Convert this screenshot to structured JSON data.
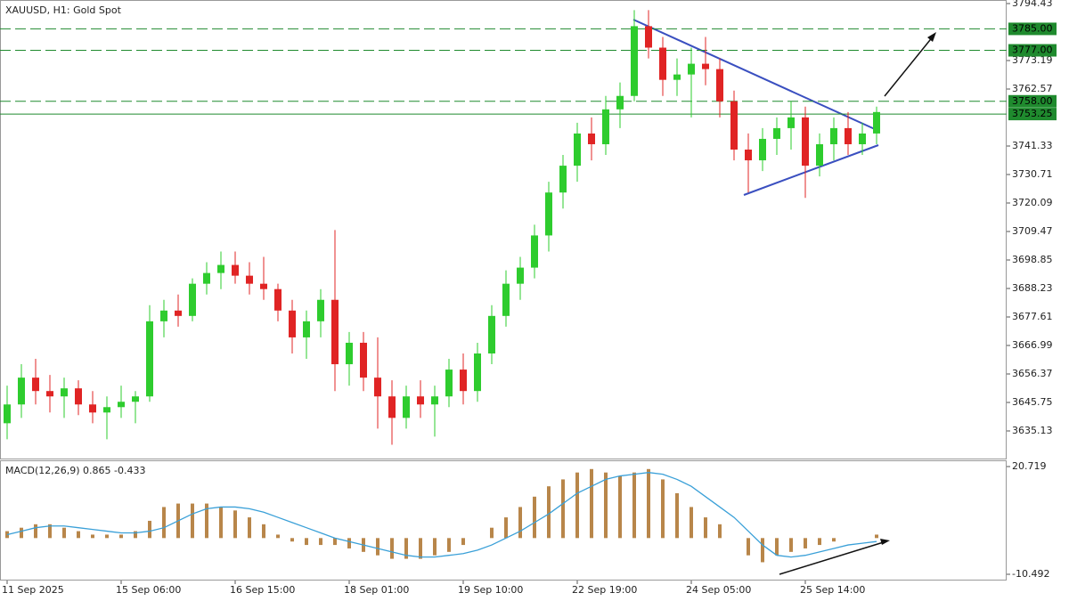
{
  "chart_data": [
    {
      "type": "candlestick",
      "title": "XAUUSD, H1:  Gold Spot",
      "categories": [
        "11 Sep 2025",
        null,
        null,
        null,
        null,
        null,
        null,
        null,
        "15 Sep 06:00",
        null,
        null,
        null,
        null,
        null,
        null,
        null,
        "16 Sep 15:00",
        null,
        null,
        null,
        null,
        null,
        null,
        null,
        "18 Sep 01:00",
        null,
        null,
        null,
        null,
        null,
        null,
        null,
        "19 Sep 10:00",
        null,
        null,
        null,
        null,
        null,
        null,
        null,
        "22 Sep 19:00",
        null,
        null,
        null,
        null,
        null,
        null,
        null,
        "24 Sep 05:00",
        null,
        null,
        null,
        null,
        null,
        null,
        null,
        "25 Sep 14:00",
        null,
        null,
        null,
        null,
        null
      ],
      "open": [
        3638,
        3645,
        3655,
        3650,
        3648,
        3651,
        3645,
        3642,
        3644,
        3646,
        3648,
        3676,
        3680,
        3678,
        3690,
        3694,
        3697,
        3693,
        3690,
        3688,
        3680,
        3670,
        3676,
        3684,
        3660,
        3668,
        3655,
        3648,
        3640,
        3648,
        3645,
        3648,
        3658,
        3650,
        3664,
        3678,
        3690,
        3696,
        3708,
        3724,
        3734,
        3746,
        3742,
        3755,
        3760,
        3786,
        3778,
        3766,
        3768,
        3772,
        3770,
        3758,
        3740,
        3736,
        3744,
        3748,
        3752,
        3734,
        3742,
        3748,
        3742,
        3746
      ],
      "high": [
        3652,
        3660,
        3662,
        3656,
        3655,
        3654,
        3650,
        3648,
        3652,
        3650,
        3682,
        3684,
        3686,
        3692,
        3698,
        3702,
        3702,
        3698,
        3700,
        3690,
        3684,
        3680,
        3688,
        3710,
        3672,
        3672,
        3670,
        3654,
        3652,
        3654,
        3652,
        3662,
        3664,
        3668,
        3682,
        3695,
        3700,
        3712,
        3728,
        3738,
        3750,
        3752,
        3760,
        3765,
        3792,
        3792,
        3782,
        3774,
        3778,
        3782,
        3774,
        3762,
        3746,
        3748,
        3752,
        3758,
        3756,
        3746,
        3752,
        3754,
        3750,
        3756
      ],
      "low": [
        3632,
        3640,
        3645,
        3642,
        3640,
        3641,
        3638,
        3632,
        3640,
        3638,
        3646,
        3670,
        3674,
        3676,
        3686,
        3688,
        3690,
        3686,
        3684,
        3676,
        3664,
        3662,
        3670,
        3650,
        3652,
        3650,
        3636,
        3630,
        3636,
        3640,
        3633,
        3644,
        3645,
        3646,
        3660,
        3674,
        3684,
        3692,
        3702,
        3718,
        3728,
        3736,
        3738,
        3748,
        3758,
        3774,
        3760,
        3760,
        3752,
        3764,
        3752,
        3736,
        3724,
        3732,
        3738,
        3740,
        3722,
        3730,
        3736,
        3738,
        3738,
        3742
      ],
      "close": [
        3645,
        3655,
        3650,
        3648,
        3651,
        3645,
        3642,
        3644,
        3646,
        3648,
        3676,
        3680,
        3678,
        3690,
        3694,
        3697,
        3693,
        3690,
        3688,
        3680,
        3670,
        3676,
        3684,
        3660,
        3668,
        3655,
        3648,
        3640,
        3648,
        3645,
        3648,
        3658,
        3650,
        3664,
        3678,
        3690,
        3696,
        3708,
        3724,
        3734,
        3746,
        3742,
        3755,
        3760,
        3786,
        3778,
        3766,
        3768,
        3772,
        3770,
        3758,
        3740,
        3736,
        3744,
        3748,
        3752,
        3734,
        3742,
        3748,
        3742,
        3746,
        3754
      ],
      "up_color": "#2ecc2e",
      "down_color": "#e02424",
      "ylim": [
        3624.84,
        3795.76
      ],
      "yticks": [
        3794.43,
        3773.19,
        3762.57,
        3741.33,
        3730.71,
        3720.09,
        3709.47,
        3698.85,
        3688.23,
        3677.61,
        3666.99,
        3656.37,
        3645.75,
        3635.13
      ],
      "levels": [
        {
          "value": 3785,
          "label": "3785.00"
        },
        {
          "value": 3777,
          "label": "3777.00"
        },
        {
          "value": 3758,
          "label": "3758.00"
        }
      ],
      "current_price": 3753.25,
      "level_color": "#1f8a2e"
    },
    {
      "type": "macd",
      "title": "MACD(12,26,9) 0.865 -0.433",
      "histogram": [
        2,
        3,
        4,
        4,
        3,
        2,
        1,
        1,
        1,
        2,
        5,
        9,
        10,
        10,
        10,
        9,
        8,
        6,
        4,
        1,
        -1,
        -2,
        -2,
        -2,
        -3,
        -4,
        -5,
        -6,
        -6,
        -6,
        -5,
        -4,
        -2,
        0,
        3,
        6,
        9,
        12,
        15,
        17,
        19,
        20,
        19,
        18,
        19,
        20,
        17,
        13,
        9,
        6,
        4,
        0,
        -5,
        -7,
        -5,
        -4,
        -3,
        -2,
        -1,
        0,
        0,
        1
      ],
      "signal": [
        1,
        2,
        3,
        3.5,
        3.5,
        3,
        2.5,
        2,
        1.5,
        1.5,
        2,
        3,
        5,
        7,
        8.5,
        9,
        9,
        8.5,
        7.5,
        6,
        4.5,
        3,
        1.5,
        0,
        -1,
        -2,
        -3,
        -4,
        -5,
        -5.5,
        -5.5,
        -5,
        -4.5,
        -3.5,
        -2,
        0,
        2,
        4.5,
        7,
        10,
        13,
        15,
        17,
        18,
        18.5,
        19,
        18.5,
        17,
        15,
        12,
        9,
        6,
        2,
        -2,
        -5,
        -5.5,
        -5,
        -4,
        -3,
        -2,
        -1.5,
        -1
      ],
      "histogram_color": "#b8864a",
      "signal_color": "#3aa0d8",
      "ylim": [
        -12.3,
        22.27
      ],
      "yticks": [
        20.719,
        -10.492
      ]
    }
  ]
}
